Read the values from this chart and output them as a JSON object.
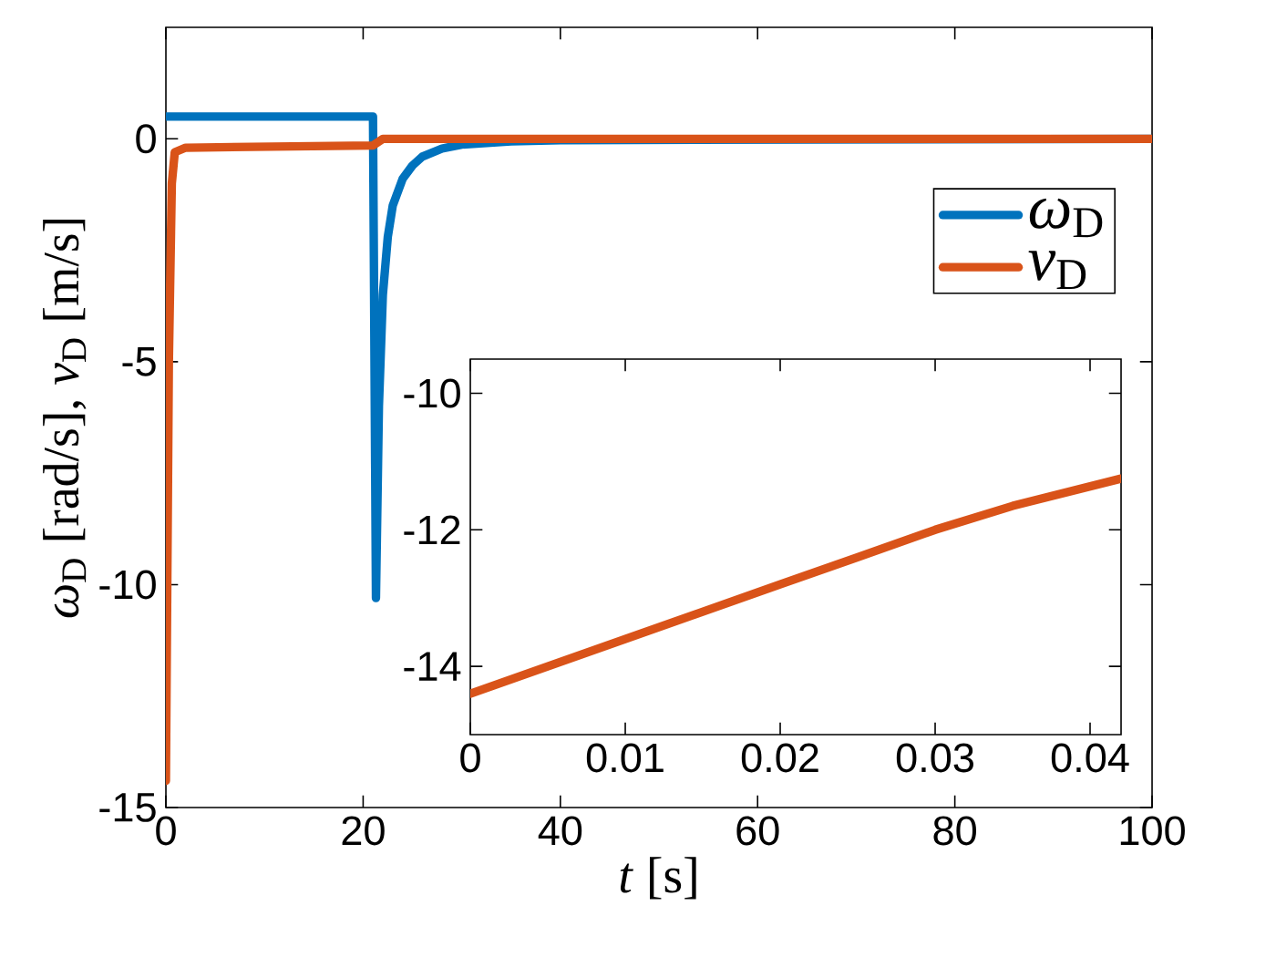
{
  "chart_data": [
    {
      "type": "line",
      "xlabel": "*t* [s]",
      "ylabel": "*ω*$_{D}$ [rad/s], *v*$_{D}$ [m/s]",
      "xlim": [
        0,
        100
      ],
      "ylim": [
        -15,
        2.5
      ],
      "xticks": [
        0,
        20,
        40,
        60,
        80,
        100
      ],
      "yticks": [
        -15,
        -10,
        -5,
        0
      ],
      "legend": "top right",
      "series": [
        {
          "name": "*ω*$_{D}$",
          "color": "#0072bd",
          "x": [
            0,
            21,
            21.3,
            21.6,
            22,
            22.5,
            23,
            24,
            25,
            26,
            28,
            30,
            35,
            40,
            100
          ],
          "values": [
            0.5,
            0.5,
            -10.3,
            -6,
            -3.5,
            -2.2,
            -1.5,
            -0.9,
            -0.6,
            -0.4,
            -0.22,
            -0.13,
            -0.06,
            -0.03,
            0
          ]
        },
        {
          "name": "*v*$_{D}$",
          "color": "#d95319",
          "x": [
            0,
            0.3,
            0.6,
            0.9,
            2,
            21,
            22,
            100
          ],
          "values": [
            -14.4,
            -5,
            -1,
            -0.3,
            -0.2,
            -0.15,
            0,
            0
          ]
        }
      ]
    },
    {
      "type": "line",
      "xlim": [
        0,
        0.042
      ],
      "ylim": [
        -15,
        -9.5
      ],
      "xticks": [
        0,
        0.01,
        0.02,
        0.03,
        0.04
      ],
      "yticks": [
        -14,
        -12,
        -10
      ],
      "series": [
        {
          "color": "#d95319",
          "x": [
            0,
            0.005,
            0.01,
            0.015,
            0.02,
            0.025,
            0.03,
            0.035,
            0.042
          ],
          "values": [
            -14.4,
            -14.0,
            -13.6,
            -13.2,
            -12.8,
            -12.4,
            -12.0,
            -11.65,
            -11.25
          ]
        }
      ]
    }
  ]
}
